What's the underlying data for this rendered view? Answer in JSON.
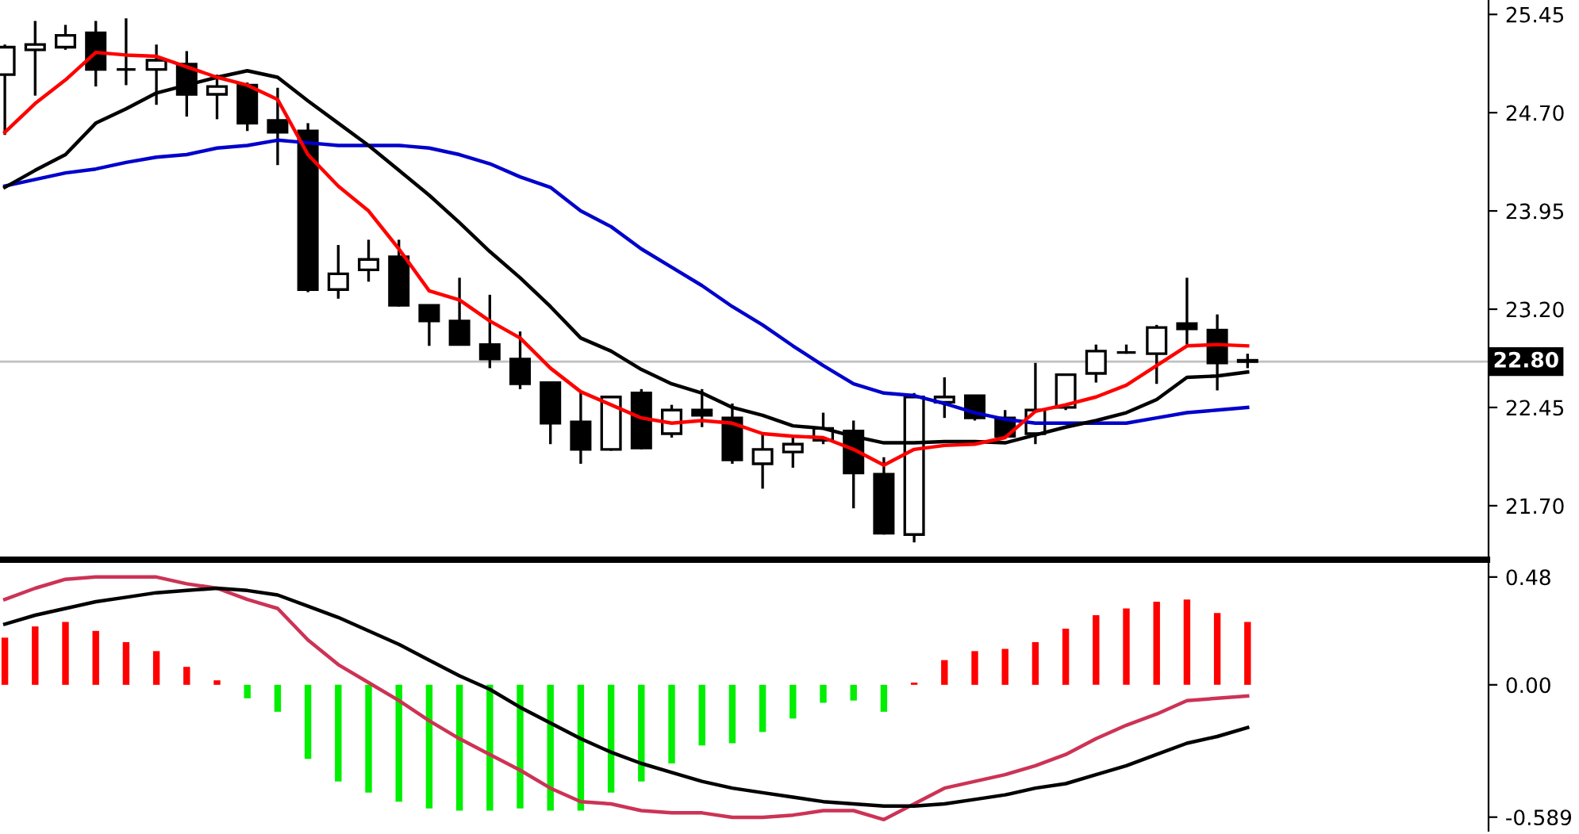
{
  "chart_data": [
    {
      "type": "candlestick",
      "categories": [
        null,
        null,
        null,
        null,
        null,
        null,
        null,
        null,
        null,
        null,
        null,
        null,
        null,
        null,
        null,
        null,
        null,
        null,
        null,
        null,
        null,
        null,
        null,
        null,
        null,
        null,
        null,
        null,
        null,
        null,
        null,
        null,
        null,
        null,
        null,
        null,
        null,
        null,
        null,
        null,
        null,
        null
      ],
      "ohlc": [
        [
          24.99,
          25.22,
          24.53,
          25.2
        ],
        [
          25.18,
          25.4,
          24.83,
          25.22
        ],
        [
          25.2,
          25.37,
          25.18,
          25.29
        ],
        [
          25.31,
          25.4,
          24.9,
          25.03
        ],
        [
          25.03,
          25.42,
          24.91,
          25.03
        ],
        [
          25.03,
          25.22,
          24.76,
          25.1
        ],
        [
          25.07,
          25.17,
          24.67,
          24.84
        ],
        [
          24.84,
          24.99,
          24.65,
          24.9
        ],
        [
          24.91,
          24.93,
          24.56,
          24.62
        ],
        [
          24.64,
          24.89,
          24.3,
          24.55
        ],
        [
          24.56,
          24.62,
          23.33,
          23.35
        ],
        [
          23.35,
          23.69,
          23.28,
          23.47
        ],
        [
          23.5,
          23.73,
          23.41,
          23.58
        ],
        [
          23.6,
          23.73,
          23.22,
          23.23
        ],
        [
          23.23,
          23.23,
          22.92,
          23.11
        ],
        [
          23.11,
          23.44,
          22.93,
          22.93
        ],
        [
          22.93,
          23.31,
          22.75,
          22.82
        ],
        [
          22.82,
          23.03,
          22.59,
          22.63
        ],
        [
          22.64,
          22.64,
          22.17,
          22.33
        ],
        [
          22.34,
          22.57,
          22.02,
          22.13
        ],
        [
          22.13,
          22.54,
          22.12,
          22.53
        ],
        [
          22.56,
          22.59,
          22.13,
          22.14
        ],
        [
          22.25,
          22.47,
          22.22,
          22.43
        ],
        [
          22.43,
          22.59,
          22.3,
          22.39
        ],
        [
          22.37,
          22.48,
          22.02,
          22.05
        ],
        [
          22.02,
          22.25,
          21.83,
          22.13
        ],
        [
          22.11,
          22.23,
          21.99,
          22.17
        ],
        [
          22.2,
          22.41,
          22.17,
          22.29
        ],
        [
          22.27,
          22.35,
          21.68,
          21.95
        ],
        [
          21.94,
          22.07,
          21.48,
          21.49
        ],
        [
          21.48,
          22.56,
          21.42,
          22.53
        ],
        [
          22.49,
          22.68,
          22.37,
          22.53
        ],
        [
          22.54,
          22.54,
          22.35,
          22.37
        ],
        [
          22.37,
          22.43,
          22.22,
          22.23
        ],
        [
          22.25,
          22.79,
          22.17,
          22.43
        ],
        [
          22.45,
          22.71,
          22.43,
          22.7
        ],
        [
          22.71,
          22.93,
          22.64,
          22.88
        ],
        [
          22.87,
          22.93,
          22.86,
          22.87
        ],
        [
          22.86,
          23.08,
          22.63,
          23.06
        ],
        [
          23.09,
          23.44,
          22.93,
          23.05
        ],
        [
          23.04,
          23.16,
          22.58,
          22.79
        ],
        [
          22.81,
          22.86,
          22.75,
          22.8
        ]
      ],
      "series": [
        {
          "type": "line",
          "color": "#0000cc",
          "values": [
            24.14,
            24.19,
            24.24,
            24.27,
            24.32,
            24.36,
            24.38,
            24.43,
            24.45,
            24.49,
            24.47,
            24.45,
            24.45,
            24.45,
            24.43,
            24.38,
            24.31,
            24.21,
            24.13,
            23.95,
            23.83,
            23.66,
            23.52,
            23.38,
            23.22,
            23.08,
            22.92,
            22.77,
            22.63,
            22.56,
            22.54,
            22.48,
            22.41,
            22.36,
            22.33,
            22.33,
            22.33,
            22.33,
            22.37,
            22.41,
            22.43,
            22.45
          ]
        },
        {
          "type": "line",
          "color": "#000000",
          "values": [
            24.13,
            24.26,
            24.38,
            24.62,
            24.73,
            24.85,
            24.91,
            24.97,
            25.02,
            24.97,
            24.79,
            24.62,
            24.45,
            24.26,
            24.07,
            23.86,
            23.64,
            23.44,
            23.22,
            22.98,
            22.88,
            22.74,
            22.63,
            22.56,
            22.45,
            22.39,
            22.31,
            22.29,
            22.23,
            22.18,
            22.18,
            22.19,
            22.19,
            22.18,
            22.24,
            22.3,
            22.35,
            22.41,
            22.51,
            22.68,
            22.69,
            22.72
          ]
        },
        {
          "type": "line",
          "color": "#ff0000",
          "values": [
            24.55,
            24.77,
            24.95,
            25.16,
            25.14,
            25.13,
            25.05,
            24.97,
            24.91,
            24.8,
            24.38,
            24.14,
            23.95,
            23.66,
            23.34,
            23.27,
            23.11,
            22.98,
            22.75,
            22.57,
            22.47,
            22.37,
            22.33,
            22.35,
            22.33,
            22.25,
            22.23,
            22.22,
            22.13,
            22.01,
            22.13,
            22.16,
            22.17,
            22.22,
            22.42,
            22.47,
            22.53,
            22.62,
            22.77,
            22.92,
            22.93,
            22.92
          ]
        }
      ],
      "ref_lines": [
        {
          "axis": "y",
          "value": 22.8,
          "label": "22.80",
          "color": "#c0c0c0"
        }
      ],
      "ylim": [
        21.3,
        25.56
      ],
      "yticks": [
        {
          "value": 25.45,
          "label": "25.45"
        },
        {
          "value": 24.7,
          "label": "24.70"
        },
        {
          "value": 23.95,
          "label": "23.95"
        },
        {
          "value": 23.2,
          "label": "23.20"
        },
        {
          "value": 22.45,
          "label": "22.45"
        },
        {
          "value": 21.7,
          "label": "21.70"
        }
      ],
      "tick_labels": "y"
    },
    {
      "type": "bar",
      "categories": [
        null,
        null,
        null,
        null,
        null,
        null,
        null,
        null,
        null,
        null,
        null,
        null,
        null,
        null,
        null,
        null,
        null,
        null,
        null,
        null,
        null,
        null,
        null,
        null,
        null,
        null,
        null,
        null,
        null,
        null,
        null,
        null,
        null,
        null,
        null,
        null,
        null,
        null,
        null,
        null,
        null,
        null
      ],
      "series": [
        {
          "type": "bar",
          "colors": [
            "#ff0000",
            "#ff0000",
            "#ff0000",
            "#ff0000",
            "#ff0000",
            "#ff0000",
            "#ff0000",
            "#ff0000",
            "#00ee00",
            "#00ee00",
            "#00ee00",
            "#00ee00",
            "#00ee00",
            "#00ee00",
            "#00ee00",
            "#00ee00",
            "#00ee00",
            "#00ee00",
            "#00ee00",
            "#00ee00",
            "#00ee00",
            "#00ee00",
            "#00ee00",
            "#00ee00",
            "#00ee00",
            "#00ee00",
            "#00ee00",
            "#00ee00",
            "#00ee00",
            "#00ee00",
            "#ff0000",
            "#ff0000",
            "#ff0000",
            "#ff0000",
            "#ff0000",
            "#ff0000",
            "#ff0000",
            "#ff0000",
            "#ff0000",
            "#ff0000",
            "#ff0000",
            "#ff0000"
          ],
          "values": [
            0.21,
            0.26,
            0.28,
            0.24,
            0.19,
            0.15,
            0.08,
            0.02,
            -0.06,
            -0.12,
            -0.33,
            -0.43,
            -0.48,
            -0.52,
            -0.55,
            -0.56,
            -0.56,
            -0.55,
            -0.56,
            -0.56,
            -0.48,
            -0.43,
            -0.35,
            -0.27,
            -0.26,
            -0.21,
            -0.15,
            -0.08,
            -0.07,
            -0.12,
            0.01,
            0.11,
            0.15,
            0.16,
            0.19,
            0.25,
            0.31,
            0.34,
            0.37,
            0.38,
            0.32,
            0.28
          ]
        },
        {
          "type": "line",
          "color": "#cc3355",
          "values": [
            0.38,
            0.43,
            0.47,
            0.48,
            0.48,
            0.48,
            0.45,
            0.43,
            0.38,
            0.34,
            0.2,
            0.09,
            0.01,
            -0.07,
            -0.16,
            -0.24,
            -0.31,
            -0.38,
            -0.46,
            -0.52,
            -0.53,
            -0.56,
            -0.57,
            -0.57,
            -0.59,
            -0.59,
            -0.58,
            -0.56,
            -0.56,
            -0.6,
            -0.53,
            -0.46,
            -0.43,
            -0.4,
            -0.36,
            -0.31,
            -0.24,
            -0.18,
            -0.13,
            -0.07,
            -0.06,
            -0.05
          ]
        },
        {
          "type": "line",
          "color": "#000000",
          "values": [
            0.27,
            0.31,
            0.34,
            0.37,
            0.39,
            0.41,
            0.42,
            0.43,
            0.42,
            0.4,
            0.35,
            0.3,
            0.24,
            0.18,
            0.11,
            0.04,
            -0.02,
            -0.1,
            -0.17,
            -0.24,
            -0.3,
            -0.35,
            -0.39,
            -0.43,
            -0.46,
            -0.48,
            -0.5,
            -0.52,
            -0.53,
            -0.54,
            -0.54,
            -0.53,
            -0.51,
            -0.49,
            -0.46,
            -0.44,
            -0.4,
            -0.36,
            -0.31,
            -0.26,
            -0.23,
            -0.19
          ]
        }
      ],
      "ylim": [
        -0.65,
        0.55
      ],
      "yticks": [
        {
          "value": 0.48,
          "label": "0.48"
        },
        {
          "value": 0,
          "label": "0.00"
        },
        {
          "value": -0.589,
          "label": "-0.589"
        }
      ],
      "tick_labels": "y"
    }
  ]
}
